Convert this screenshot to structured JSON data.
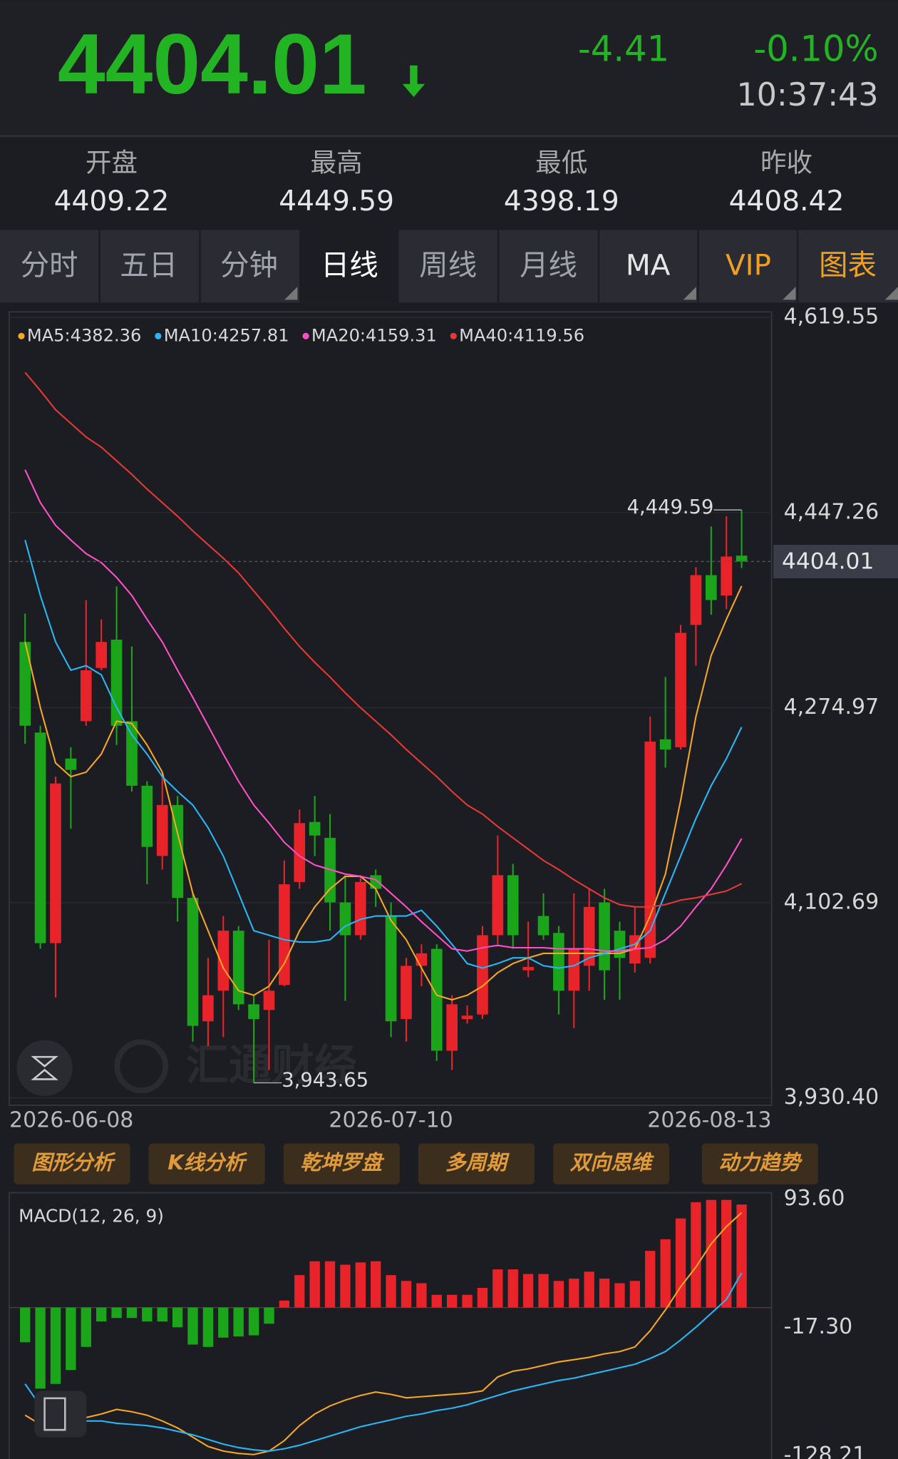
{
  "quote": {
    "price": 4404.01,
    "change": -4.41,
    "change_pct": "-0.10%",
    "time": "10:37:43"
  },
  "stats": [
    {
      "label": "开盘",
      "value": 4409.22
    },
    {
      "label": "最高",
      "value": 4449.59
    },
    {
      "label": "最低",
      "value": 4398.19
    },
    {
      "label": "昨收",
      "value": 4408.42
    }
  ],
  "tabs": [
    "分时",
    "五日",
    "分钟",
    "日线",
    "周线",
    "月线",
    "MA",
    "VIP",
    "图表"
  ],
  "buttons": [
    "图形分析",
    "K线分析",
    "乾坤罗盘",
    "多周期",
    "双向思维",
    "动力趋势"
  ],
  "watermark": "汇通财经",
  "chart_data": [
    {
      "type": "candlestick",
      "categories": [
        "2026-06-08",
        null,
        null,
        null,
        null,
        null,
        null,
        null,
        null,
        null,
        null,
        null,
        null,
        null,
        null,
        null,
        null,
        null,
        null,
        null,
        null,
        null,
        null,
        null,
        "2026-07-10",
        null,
        null,
        null,
        null,
        null,
        null,
        null,
        null,
        null,
        null,
        null,
        null,
        null,
        null,
        null,
        null,
        null,
        null,
        null,
        null,
        null,
        null,
        "2026-08-13"
      ],
      "candles": {
        "open": [
          4333,
          4253,
          4067,
          4230,
          4263,
          4310,
          4335,
          4263,
          4206,
          4144,
          4189,
          4107,
          3998,
          4025,
          4078,
          4013,
          4008,
          4030,
          4121,
          4174,
          4160,
          4103,
          4074,
          4127,
          4091,
          4000,
          4047,
          4062,
          3972,
          4000,
          4004,
          4074,
          4127,
          4043,
          4091,
          4076,
          4025,
          4047,
          4103,
          4078,
          4049,
          4054,
          4247,
          4240,
          4348,
          4392,
          4374,
          4409.22
        ],
        "high": [
          4358,
          4259,
          4214,
          4240,
          4370,
          4353,
          4382,
          4329,
          4210,
          4218,
          4197,
          4111,
          4054,
          4091,
          4082,
          4021,
          4070,
          4140,
          4185,
          4197,
          4181,
          4127,
          4127,
          4132,
          4103,
          4054,
          4066,
          4066,
          4021,
          4012,
          4082,
          4162,
          4137,
          4086,
          4111,
          4082,
          4111,
          4115,
          4115,
          4086,
          4099,
          4267,
          4302,
          4348,
          4399,
          4435,
          4444,
          4449.59
        ],
        "low": [
          4243,
          4062,
          4019,
          4168,
          4259,
          4308,
          4242,
          4201,
          4119,
          4132,
          4086,
          3980,
          3976,
          3984,
          4008,
          3943.65,
          3955,
          4029,
          4115,
          4144,
          4078,
          4016,
          4070,
          4099,
          3984,
          3980,
          4029,
          3963,
          3955,
          3996,
          4000,
          4066,
          4062,
          4037,
          4070,
          4004,
          3992,
          4025,
          4017,
          4017,
          4041,
          4049,
          4222,
          4238,
          4312,
          4357,
          4362,
          4398.19
        ],
        "close": [
          4259,
          4067,
          4208,
          4220,
          4308,
          4333,
          4259,
          4206,
          4152,
          4189,
          4107,
          3994,
          4021,
          4078,
          4013,
          4000,
          4025,
          4119,
          4173,
          4162,
          4103,
          4074,
          4121,
          4115,
          3998,
          4047,
          4058,
          3972,
          4013,
          4003,
          4074,
          4127,
          4074,
          4046,
          4074,
          4025,
          4062,
          4099,
          4043,
          4054,
          4074,
          4245,
          4238,
          4341,
          4392,
          4370,
          4408.42,
          4404.01
        ]
      },
      "up_color": "#e8232a",
      "down_color": "#1aa51a",
      "series": [
        {
          "name": "MA5:4382.36",
          "color": "#f5a623",
          "values": [
            4333,
            4275,
            4226,
            4214,
            4218,
            4234,
            4263,
            4261,
            4242,
            4218,
            4164,
            4111,
            4078,
            4045,
            4025,
            4021,
            4029,
            4049,
            4078,
            4099,
            4115,
            4126,
            4126,
            4115,
            4087,
            4070,
            4045,
            4021,
            4017,
            4021,
            4029,
            4041,
            4049,
            4054,
            4058,
            4058,
            4058,
            4058,
            4058,
            4058,
            4062,
            4091,
            4128,
            4193,
            4267,
            4321,
            4353,
            4382.36
          ]
        },
        {
          "name": "MA10:4257.81",
          "color": "#29b6f6",
          "values": [
            4423,
            4374,
            4333,
            4308,
            4312,
            4304,
            4275,
            4251,
            4234,
            4214,
            4201,
            4189,
            4169,
            4144,
            4111,
            4078,
            4074,
            4070,
            4068,
            4068,
            4070,
            4082,
            4088,
            4091,
            4091,
            4091,
            4096,
            4082,
            4066,
            4049,
            4045,
            4049,
            4054,
            4054,
            4047,
            4045,
            4047,
            4054,
            4058,
            4062,
            4066,
            4078,
            4111,
            4144,
            4177,
            4206,
            4230,
            4257.81
          ]
        },
        {
          "name": "MA20:4159.31",
          "color": "#ff4fc8",
          "values": [
            4485,
            4456,
            4436,
            4423,
            4411,
            4403,
            4390,
            4374,
            4353,
            4333,
            4308,
            4284,
            4259,
            4234,
            4210,
            4189,
            4173,
            4156,
            4144,
            4136,
            4132,
            4128,
            4126,
            4123,
            4111,
            4099,
            4086,
            4074,
            4062,
            4060,
            4063,
            4065,
            4063,
            4063,
            4063,
            4062,
            4062,
            4062,
            4060,
            4060,
            4062,
            4063,
            4070,
            4082,
            4099,
            4115,
            4136,
            4159.31
          ]
        },
        {
          "name": "MA40:4119.56",
          "color": "#e53935",
          "values": [
            4571,
            4555,
            4538,
            4526,
            4514,
            4505,
            4493,
            4481,
            4468,
            4456,
            4444,
            4431,
            4419,
            4407,
            4394,
            4378,
            4362,
            4345,
            4329,
            4315,
            4302,
            4288,
            4275,
            4263,
            4251,
            4238,
            4226,
            4214,
            4201,
            4189,
            4181,
            4170,
            4160,
            4150,
            4140,
            4132,
            4123,
            4115,
            4107,
            4101,
            4099,
            4099,
            4101,
            4105,
            4107,
            4110,
            4113,
            4119.56
          ]
        }
      ],
      "ylim": [
        3930.4,
        4619.55
      ],
      "yticks": [
        {
          "value": 3930.4,
          "label": "3,930.40"
        },
        {
          "value": 4102.69,
          "label": "4,102.69"
        },
        {
          "value": 4274.97,
          "label": "4,274.97"
        },
        {
          "value": 4447.26,
          "label": "4,447.26"
        },
        {
          "value": 4619.55,
          "label": "4,619.55"
        }
      ],
      "grid": true,
      "annotations": [
        {
          "value": 4449.59,
          "label": "4,449.59"
        },
        {
          "value": 3943.65,
          "label": "3,943.65"
        }
      ]
    },
    {
      "type": "macd",
      "title": "MACD(12, 26, 9)",
      "histogram": {
        "up_color": "#e8232a",
        "down_color": "#1aa51a",
        "values": [
          -30,
          -70,
          -66,
          -54,
          -34,
          -12,
          -9,
          -9,
          -12,
          -12,
          -17,
          -32,
          -34,
          -26,
          -25,
          -24,
          -14,
          6,
          28,
          40,
          40,
          37,
          39,
          40,
          28,
          23,
          21,
          11,
          11,
          11,
          17,
          33,
          33,
          29,
          29,
          23,
          25,
          31,
          25,
          21,
          23,
          49,
          59,
          77,
          91,
          93,
          93,
          89
        ]
      },
      "series": [
        {
          "color": "#f5a623",
          "values": [
            -93,
            -101,
            -105,
            -100,
            -95,
            -92,
            -88,
            -90,
            -93,
            -98,
            -104,
            -112,
            -120,
            -124,
            -126,
            -127,
            -124,
            -115,
            -102,
            -92,
            -85,
            -80,
            -76,
            -73,
            -75,
            -78,
            -77,
            -76,
            -75,
            -74,
            -72,
            -60,
            -55,
            -53,
            -50,
            -47,
            -45,
            -43,
            -40,
            -38,
            -34,
            -20,
            -2,
            18,
            35,
            55,
            70,
            82
          ]
        },
        {
          "color": "#29b6f6",
          "values": [
            -66,
            -85,
            -95,
            -98,
            -98,
            -98,
            -100,
            -101,
            -102,
            -104,
            -107,
            -110,
            -114,
            -118,
            -121,
            -123,
            -124,
            -122,
            -119,
            -115,
            -111,
            -107,
            -103,
            -100,
            -97,
            -94,
            -92,
            -89,
            -87,
            -84,
            -80,
            -76,
            -72,
            -69,
            -66,
            -63,
            -61,
            -58,
            -55,
            -52,
            -49,
            -44,
            -38,
            -28,
            -17,
            -5,
            7,
            30
          ]
        }
      ],
      "ylim": [
        -128.21,
        93.6
      ],
      "yticks": [
        {
          "value": 93.6,
          "label": "93.60"
        },
        {
          "value": -17.3,
          "label": "-17.30"
        },
        -128.21
      ]
    }
  ]
}
